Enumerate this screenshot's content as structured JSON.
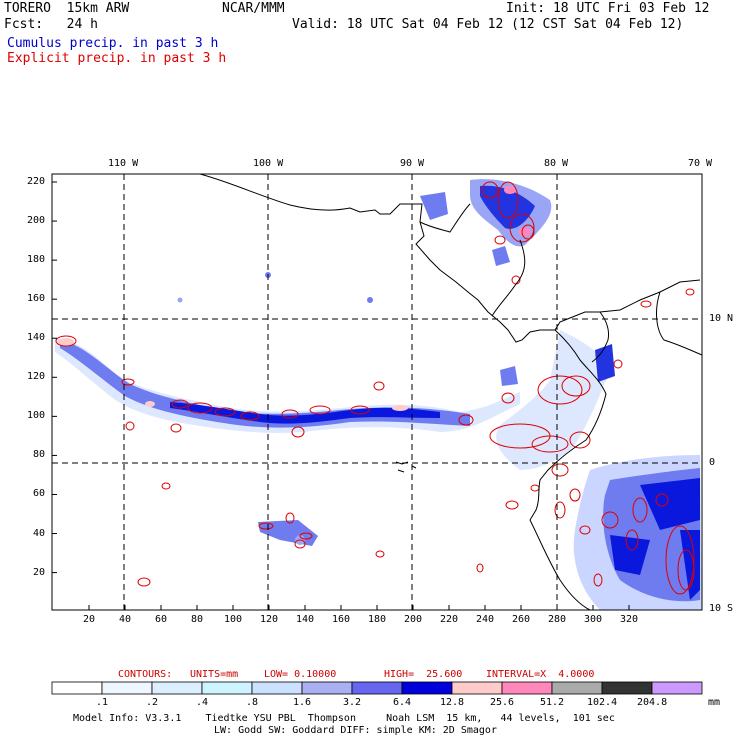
{
  "header": {
    "model": "TORERO  15km ARW",
    "org": "NCAR/MMM",
    "init": "Init: 18 UTC Fri 03 Feb 12",
    "fcst": "Fcst:   24 h",
    "valid": "Valid: 18 UTC Sat 04 Feb 12 (12 CST Sat 04 Feb 12)",
    "cumulus_label": "Cumulus precip. in past 3 h",
    "explicit_label": "Explicit precip. in past 3 h"
  },
  "colors": {
    "cumulus": "#0000cc",
    "explicit": "#dd0000",
    "grid": "#000000"
  },
  "axes": {
    "top_lon_labels": [
      "110 W",
      "100 W",
      "90 W",
      "80 W",
      "70 W"
    ],
    "right_lat_labels": [
      "10 N",
      "0",
      "10 S"
    ],
    "left_y_ticks": [
      "220",
      "200",
      "180",
      "160",
      "140",
      "120",
      "100",
      "80",
      "60",
      "40",
      "20"
    ],
    "bottom_x_ticks": [
      "20",
      "40",
      "60",
      "80",
      "100",
      "120",
      "140",
      "160",
      "180",
      "200",
      "220",
      "240",
      "260",
      "280",
      "300",
      "320"
    ]
  },
  "contour_info": {
    "contours": "CONTOURS:",
    "units": "UNITS=mm",
    "low": "LOW= 0.10000",
    "high": "HIGH=  25.600",
    "interval": "INTERVAL=X  4.0000"
  },
  "colorbar": {
    "labels": [
      ".1",
      ".2",
      ".4",
      ".8",
      "1.6",
      "3.2",
      "6.4",
      "12.8",
      "25.6",
      "51.2",
      "102.4",
      "204.8"
    ],
    "unit": "mm",
    "colors": [
      "#ffffff",
      "#eef7ff",
      "#ddeeff",
      "#ccf5ff",
      "#cce0ff",
      "#aab0f2",
      "#6666ee",
      "#0000dd",
      "#ffcccc",
      "#ff88bb",
      "#aaaaaa",
      "#333333",
      "#cc99ff"
    ]
  },
  "footer": {
    "line1": "Model Info: V3.3.1    Tiedtke YSU PBL  Thompson     Noah LSM  15 km,   44 levels,  101 sec",
    "line2": "LW: Godd SW: Goddard DIFF: simple KM: 2D Smagor"
  }
}
